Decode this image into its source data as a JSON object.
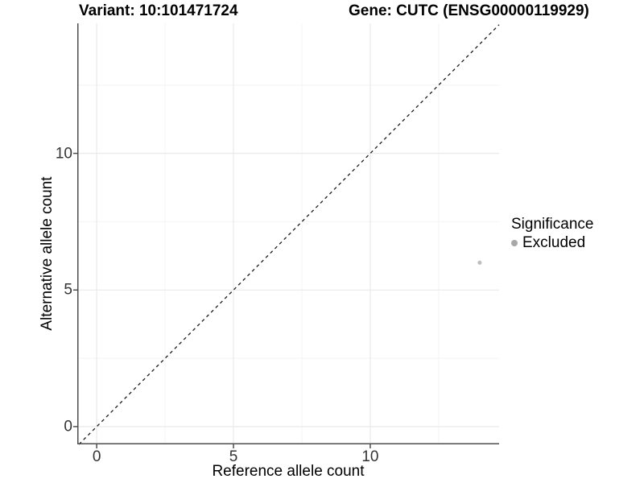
{
  "chart_data": {
    "type": "scatter",
    "title_left": "Variant: 10:101471724",
    "title_right": "Gene: CUTC (ENSG00000119929)",
    "xlabel": "Reference allele count",
    "ylabel": "Alternative allele count",
    "xlim": [
      -0.71,
      14.71
    ],
    "ylim": [
      -0.65,
      14.76
    ],
    "x_ticks": [
      0,
      5,
      10
    ],
    "y_ticks": [
      0,
      5,
      10
    ],
    "grid": {
      "on": true,
      "major": [
        0,
        5,
        10
      ],
      "minor": [
        2.5,
        7.5,
        12.5
      ]
    },
    "series": [
      {
        "name": "Excluded",
        "color": "#a8a8a8",
        "point_alpha": 0.75,
        "point_radius": 2.5,
        "points": [
          [
            14,
            6
          ]
        ]
      }
    ],
    "identity_line": {
      "equation": "y = x",
      "style": "dashed",
      "color": "#1a1a1a"
    },
    "legend_title": "Significance",
    "legend_position": "right",
    "colors": {
      "grid_major": "#ebebeb",
      "grid_minor": "#f4f4f4",
      "axis_line": "#4d4d4d",
      "tick_text": "#333333"
    }
  }
}
